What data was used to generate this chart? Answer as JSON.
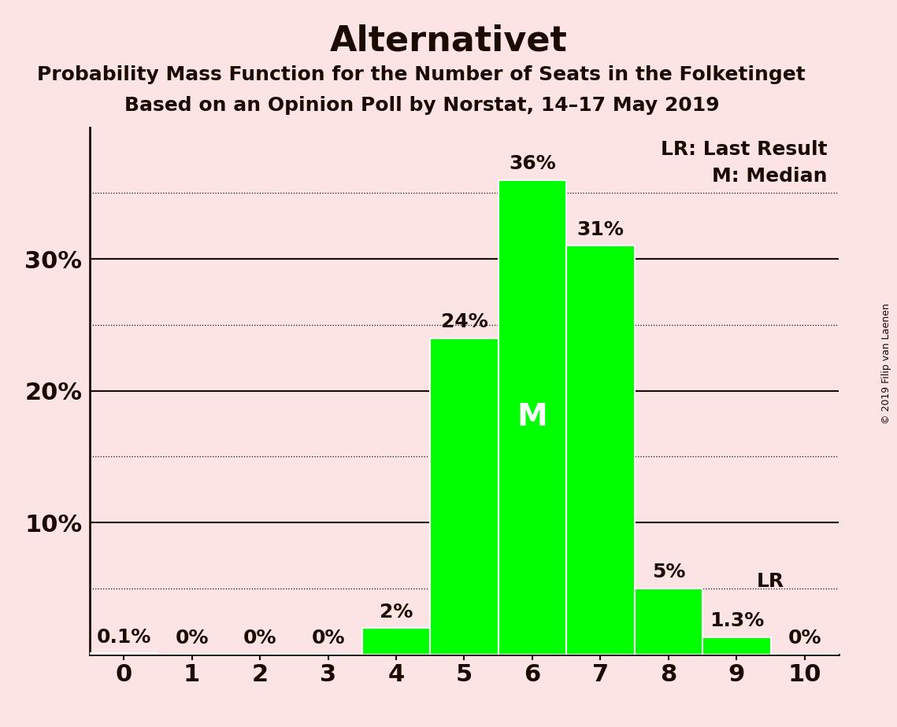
{
  "title": "Alternativet",
  "subtitle1": "Probability Mass Function for the Number of Seats in the Folketinget",
  "subtitle2": "Based on an Opinion Poll by Norstat, 14–17 May 2019",
  "watermark": "© 2019 Filip van Laenen",
  "categories": [
    0,
    1,
    2,
    3,
    4,
    5,
    6,
    7,
    8,
    9,
    10
  ],
  "values": [
    0.1,
    0,
    0,
    0,
    2,
    24,
    36,
    31,
    5,
    1.3,
    0
  ],
  "labels": [
    "0.1%",
    "0%",
    "0%",
    "0%",
    "2%",
    "24%",
    "36%",
    "31%",
    "5%",
    "1.3%",
    "0%"
  ],
  "bar_color": "#00ff00",
  "bar_edge_color": "white",
  "background_color": "#fce4e4",
  "text_color": "#1a0a00",
  "median_bar_idx": 6,
  "median_label": "M",
  "lr_bar_idx": 9,
  "lr_label": "LR",
  "ylim": [
    0,
    40
  ],
  "shown_yticks": [
    10,
    20,
    30
  ],
  "shown_ytick_labels": [
    "10%",
    "20%",
    "30%"
  ],
  "dotted_lines": [
    5,
    15,
    25,
    35
  ],
  "solid_lines": [
    10,
    20,
    30
  ],
  "legend_lr": "LR: Last Result",
  "legend_m": "M: Median",
  "title_fontsize": 32,
  "subtitle_fontsize": 18,
  "label_fontsize": 18,
  "tick_fontsize": 22,
  "legend_fontsize": 18,
  "watermark_fontsize": 9,
  "median_label_fontsize": 28
}
